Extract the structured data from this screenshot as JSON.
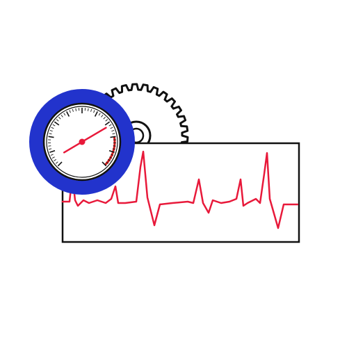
{
  "illustration": {
    "icons": [
      "pressure-gauge-icon",
      "gear-icon",
      "ecg-trace-icon"
    ],
    "colors": {
      "background": "#ffffff",
      "bezel_blue": "#2233cc",
      "trace_red": "#e8193a",
      "needle_red": "#e8193a",
      "outline": "#111111",
      "gauge_face": "#ffffff",
      "warning_arc": "#d11a1a"
    },
    "gauge": {
      "needle_level": 0.72,
      "red_zone_fraction": 0.2
    }
  }
}
